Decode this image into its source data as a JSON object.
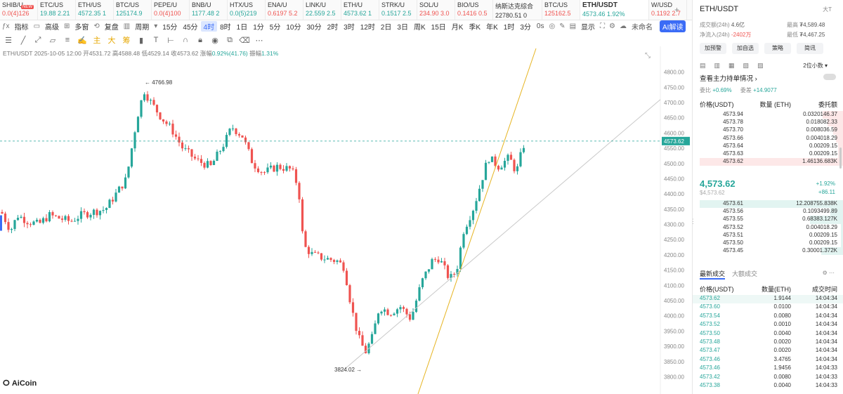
{
  "tickers": [
    {
      "sym": "SHIB/U",
      "price": "0.0(4)126",
      "dir": "dn",
      "badge": "NEW"
    },
    {
      "sym": "ETC/US",
      "price": "19.88 2.21",
      "dir": "up"
    },
    {
      "sym": "ETH/US",
      "price": "4572.35 1",
      "dir": "up"
    },
    {
      "sym": "BTC/US",
      "price": "125174.9",
      "dir": "up"
    },
    {
      "sym": "PEPE/U",
      "price": "0.0(4)100",
      "dir": "dn"
    },
    {
      "sym": "BNB/U",
      "price": "1177.48 2",
      "dir": "up"
    },
    {
      "sym": "HTX/US",
      "price": "0.0(5)219",
      "dir": "up"
    },
    {
      "sym": "ENA/U",
      "price": "0.6197 5.2",
      "dir": "dn"
    },
    {
      "sym": "LINK/U",
      "price": "22.559 2.5",
      "dir": "up"
    },
    {
      "sym": "ETH/U",
      "price": "4573.62 1",
      "dir": "up"
    },
    {
      "sym": "STRK/U",
      "price": "0.1517 2.5",
      "dir": "up"
    },
    {
      "sym": "SOL/U",
      "price": "234.90 3.0",
      "dir": "dn"
    },
    {
      "sym": "BIO/US",
      "price": "0.1416 0.5",
      "dir": "dn"
    },
    {
      "sym": "纳斯达克综合",
      "price": "22780.51 0",
      "dir": "neutral",
      "wide": true
    },
    {
      "sym": "BTC/US",
      "price": "125162.5",
      "dir": "dn"
    },
    {
      "sym": "ETH/USDT",
      "price": "4573.46 1.92%",
      "dir": "up",
      "active": true
    },
    {
      "sym": "W/USD",
      "price": "0.1192 2.7",
      "dir": "dn"
    }
  ],
  "toolbar": {
    "items": [
      "指标",
      "高级",
      "多窗",
      "复盘"
    ],
    "period_label": "周期",
    "timeframes": [
      "15分",
      "45分",
      "4时",
      "8时",
      "1日",
      "1分",
      "5分",
      "10分",
      "30分",
      "2时",
      "3时",
      "12时",
      "2日",
      "3日",
      "周K",
      "15日",
      "月K",
      "季K",
      "年K",
      "1时",
      "3分"
    ],
    "active_tf": "4时",
    "zero_label": "0s",
    "display_label": "显示",
    "unnamed_label": "未命名",
    "ai_label": "AI解读"
  },
  "drawbar": {
    "yellow_labels": [
      "主",
      "大",
      "筹"
    ]
  },
  "infoline": {
    "text": "ETH/USDT 2025-10-05 12:00",
    "open_label": "开",
    "open": "4531.72",
    "high_label": "高",
    "high": "4588.48",
    "low_label": "低",
    "low": "4529.14",
    "close_label": "收",
    "close": "4573.62",
    "chg_label": "涨幅",
    "chg": "0.92%(41.76)",
    "amp_label": "振幅",
    "amp": "1.31%"
  },
  "chart_data": {
    "type": "candlestick",
    "y_ticks": [
      4800,
      4750,
      4700,
      4650,
      4600,
      4550,
      4500,
      4450,
      4400,
      4350,
      4300,
      4250,
      4200,
      4150,
      4100,
      4050,
      4000,
      3950,
      3900,
      3850,
      3800
    ],
    "ylim": [
      3778,
      4843
    ],
    "high_marker": "4766.98",
    "low_marker": "3824.02",
    "current_price": "4573.62",
    "trendline_colors": {
      "steep": "#e6b422",
      "shallow": "#c8c8c8"
    }
  },
  "logo": "AiCoin",
  "panel": {
    "title": "ETH/USDT",
    "font_label": "大T",
    "vol_label": "成交额(24h)",
    "vol": "4.6亿",
    "high_label": "最高",
    "high": "₮4,589.48",
    "inflow_label": "净流入(24h)",
    "inflow": "-2402万",
    "low_label": "最低",
    "low": "₮4,467.25",
    "buttons": [
      "加预警",
      "加自选",
      "策略",
      "简讯"
    ],
    "decimal_label": "2位小数",
    "whale_label": "查看主力持单情况",
    "ratio1_label": "委比",
    "ratio1": "+0.69%",
    "ratio2_label": "委差",
    "ratio2": "+14.9077",
    "ob_headers": [
      "价格(USDT)",
      "数量 (ETH)",
      "委托额"
    ],
    "asks": [
      [
        "4573.94",
        "0.0320",
        "146.37"
      ],
      [
        "4573.78",
        "0.0180",
        "82.33"
      ],
      [
        "4573.70",
        "0.0080",
        "36.59"
      ],
      [
        "4573.66",
        "0.0040",
        "18.29"
      ],
      [
        "4573.64",
        "0.0020",
        "9.15"
      ],
      [
        "4573.63",
        "0.0020",
        "9.15"
      ],
      [
        "4573.62",
        "1.4613",
        "6.683K"
      ]
    ],
    "last_price": "4,573.62",
    "last_sub": "$4,573.62",
    "change_pct": "+1.92%",
    "change_abs": "+86.11",
    "bids": [
      [
        "4573.61",
        "12.2087",
        "55.838K"
      ],
      [
        "4573.56",
        "0.1093",
        "499.89"
      ],
      [
        "4573.55",
        "0.6838",
        "3.127K"
      ],
      [
        "4573.52",
        "0.0040",
        "18.29"
      ],
      [
        "4573.51",
        "0.0020",
        "9.15"
      ],
      [
        "4573.50",
        "0.0020",
        "9.15"
      ],
      [
        "4573.45",
        "0.3000",
        "1.372K"
      ]
    ],
    "trade_tabs": [
      "最新成交",
      "大额成交"
    ],
    "trade_headers": [
      "价格(USDT)",
      "数量(ETH)",
      "成交时间"
    ],
    "trades": [
      [
        "4573.62",
        "1.9144",
        "14:04:34"
      ],
      [
        "4573.60",
        "0.0100",
        "14:04:34"
      ],
      [
        "4573.54",
        "0.0080",
        "14:04:34"
      ],
      [
        "4573.52",
        "0.0010",
        "14:04:34"
      ],
      [
        "4573.50",
        "0.0040",
        "14:04:34"
      ],
      [
        "4573.48",
        "0.0020",
        "14:04:34"
      ],
      [
        "4573.47",
        "0.0020",
        "14:04:34"
      ],
      [
        "4573.46",
        "3.4765",
        "14:04:34"
      ],
      [
        "4573.46",
        "1.9456",
        "14:04:33"
      ],
      [
        "4573.42",
        "0.0080",
        "14:04:33"
      ],
      [
        "4573.38",
        "0.0040",
        "14:04:33"
      ]
    ]
  }
}
